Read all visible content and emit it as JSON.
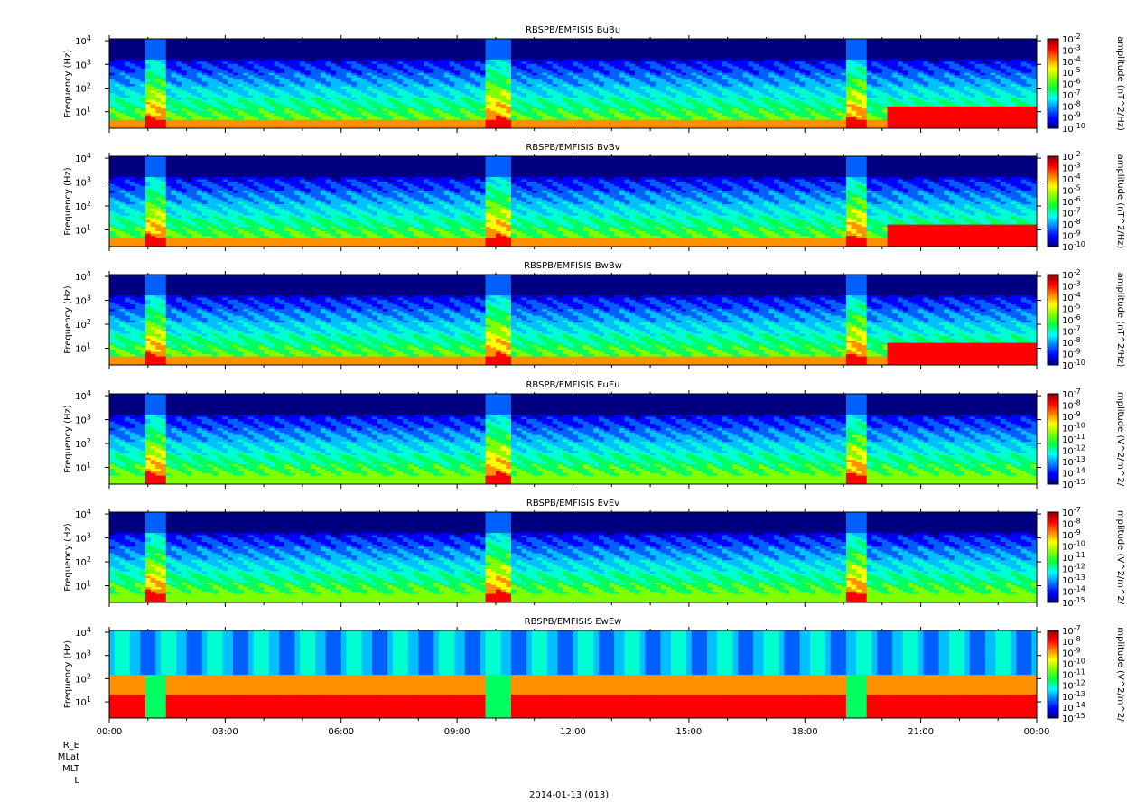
{
  "chart_data": {
    "type": "heatmap",
    "panels": [
      {
        "title": "RBSPB/EMFISIS  BuBu",
        "ylabel": "Frequency (Hz)",
        "y_scale": "log",
        "yticks": [
          "10^1",
          "10^2",
          "10^3",
          "10^4"
        ],
        "colorbar_label": "amplitude (nT^2/Hz)",
        "colorbar_ticks": [
          "10^-2",
          "10^-3",
          "10^-4",
          "10^-5",
          "10^-6",
          "10^-7",
          "10^-8",
          "10^-9",
          "10^-10"
        ],
        "variant": "b"
      },
      {
        "title": "RBSPB/EMFISIS  BvBv",
        "ylabel": "Frequency (Hz)",
        "y_scale": "log",
        "yticks": [
          "10^1",
          "10^2",
          "10^3",
          "10^4"
        ],
        "colorbar_label": "amplitude (nT^2/Hz)",
        "colorbar_ticks": [
          "10^-2",
          "10^-3",
          "10^-4",
          "10^-5",
          "10^-6",
          "10^-7",
          "10^-8",
          "10^-9",
          "10^-10"
        ],
        "variant": "b"
      },
      {
        "title": "RBSPB/EMFISIS  BwBw",
        "ylabel": "Frequency (Hz)",
        "y_scale": "log",
        "yticks": [
          "10^1",
          "10^2",
          "10^3",
          "10^4"
        ],
        "colorbar_label": "amplitude (nT^2/Hz)",
        "colorbar_ticks": [
          "10^-2",
          "10^-3",
          "10^-4",
          "10^-5",
          "10^-6",
          "10^-7",
          "10^-8",
          "10^-9",
          "10^-10"
        ],
        "variant": "b"
      },
      {
        "title": "RBSPB/EMFISIS  EuEu",
        "ylabel": "Frequency (Hz)",
        "y_scale": "log",
        "yticks": [
          "10^1",
          "10^2",
          "10^3",
          "10^4"
        ],
        "colorbar_label": "mplitude (V^2/m^2/",
        "colorbar_ticks": [
          "10^-7",
          "10^-8",
          "10^-9",
          "10^-10",
          "10^-11",
          "10^-12",
          "10^-13",
          "10^-14",
          "10^-15"
        ],
        "variant": "e"
      },
      {
        "title": "RBSPB/EMFISIS  EvEv",
        "ylabel": "Frequency (Hz)",
        "y_scale": "log",
        "yticks": [
          "10^1",
          "10^2",
          "10^3",
          "10^4"
        ],
        "colorbar_label": "mplitude (V^2/m^2/",
        "colorbar_ticks": [
          "10^-7",
          "10^-8",
          "10^-9",
          "10^-10",
          "10^-11",
          "10^-12",
          "10^-13",
          "10^-14",
          "10^-15"
        ],
        "variant": "e"
      },
      {
        "title": "RBSPB/EMFISIS  EwEw",
        "ylabel": "Frequency (Hz)",
        "y_scale": "log",
        "yticks": [
          "10^1",
          "10^2",
          "10^3",
          "10^4"
        ],
        "colorbar_label": "mplitude (V^2/m^2/",
        "colorbar_ticks": [
          "10^-7",
          "10^-8",
          "10^-9",
          "10^-10",
          "10^-11",
          "10^-12",
          "10^-13",
          "10^-14",
          "10^-15"
        ],
        "variant": "ew"
      }
    ],
    "y_range_hz": [
      2,
      12000
    ],
    "x_range_hours": [
      0,
      24
    ],
    "xticks": [
      "00:00",
      "03:00",
      "06:00",
      "09:00",
      "12:00",
      "15:00",
      "18:00",
      "21:00",
      "00:00"
    ],
    "footer_labels": [
      "R_E",
      "MLat",
      "MLT",
      "L"
    ],
    "date_label": "2014-01-13 (013)",
    "colormap": [
      "#8b0000",
      "#ff0000",
      "#ff8000",
      "#ffff00",
      "#80ff00",
      "#00ff40",
      "#00ffff",
      "#0080ff",
      "#0000ff",
      "#000080"
    ]
  }
}
